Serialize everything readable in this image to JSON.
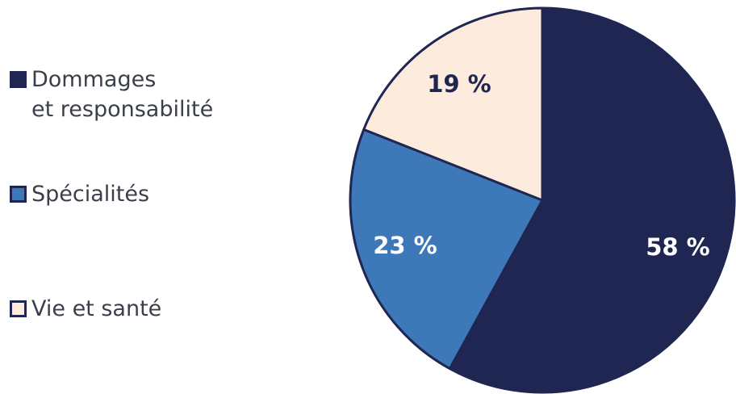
{
  "chart_data": {
    "type": "pie",
    "title": "",
    "slices": [
      {
        "label": "Dommages\net responsabilité",
        "value": 58,
        "display": "58 %",
        "color": "#1f2652",
        "text_color": "#ffffff"
      },
      {
        "label": "Spécialités",
        "value": 23,
        "display": "23 %",
        "color": "#3d78b8",
        "text_color": "#ffffff"
      },
      {
        "label": "Vie et santé",
        "value": 19,
        "display": "19 %",
        "color": "#fdebdd",
        "text_color": "#1f2652"
      }
    ],
    "start_angle_deg": 0,
    "direction": "clockwise",
    "legend_position": "left"
  }
}
